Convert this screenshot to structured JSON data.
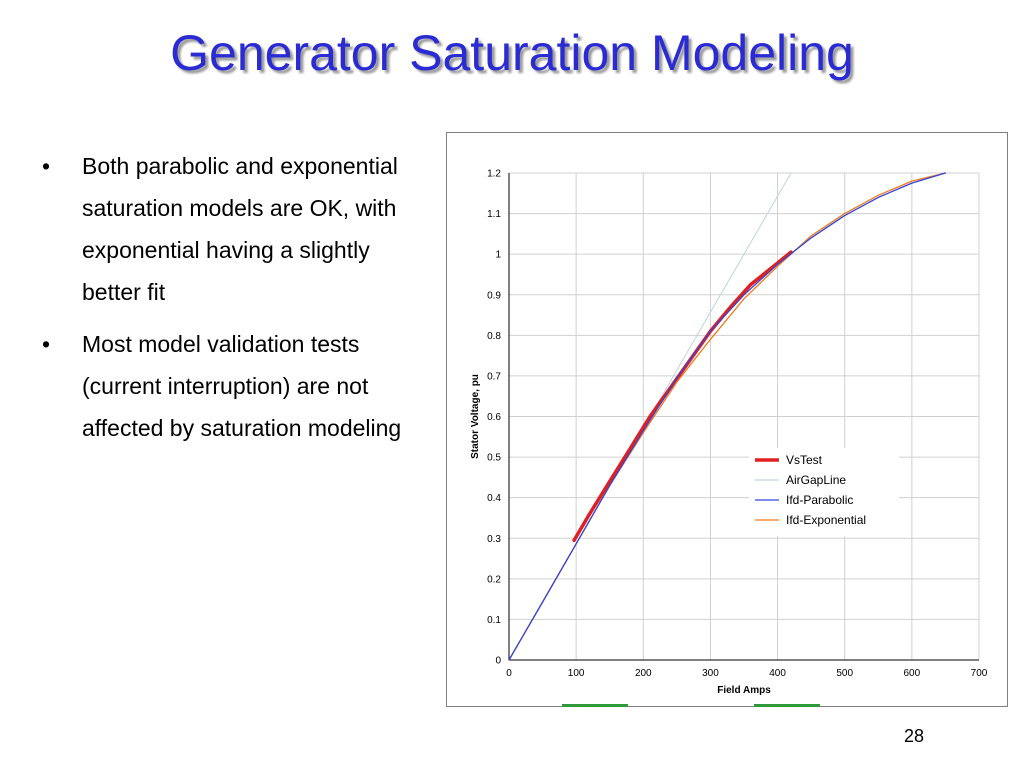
{
  "slide": {
    "title": "Generator Saturation Modeling",
    "bullets": [
      "Both parabolic and exponential saturation models are OK, with exponential having a slightly better fit",
      "Most model validation tests (current interruption) are not affected by saturation modeling"
    ],
    "bullet_glyph": "•",
    "page_number": "28"
  },
  "colors": {
    "title": "#2b2bd4",
    "vs_test": "#e02020",
    "air_gap": "#c0d4dc",
    "parabolic": "#3344dd",
    "exponential": "#f07a1a",
    "grid": "#d0d0d0"
  },
  "chart_data": {
    "type": "line",
    "xlabel": "Field Amps",
    "ylabel": "Stator Voltage, pu",
    "xlim": [
      0,
      700
    ],
    "ylim": [
      0,
      1.2
    ],
    "x_ticks": [
      "0",
      "100",
      "200",
      "300",
      "400",
      "500",
      "600",
      "700"
    ],
    "y_ticks": [
      "0",
      "0.1",
      "0.2",
      "0.3",
      "0.4",
      "0.5",
      "0.6",
      "0.7",
      "0.8",
      "0.9",
      "1",
      "1.1",
      "1.2"
    ],
    "grid": true,
    "legend_position": "lower-right",
    "series": [
      {
        "name": "VsTest",
        "color_key": "vs_test",
        "x": [
          97,
          120,
          150,
          180,
          210,
          240,
          270,
          300,
          330,
          360,
          390,
          420
        ],
        "y": [
          0.295,
          0.36,
          0.44,
          0.52,
          0.6,
          0.67,
          0.74,
          0.81,
          0.87,
          0.925,
          0.965,
          1.005
        ]
      },
      {
        "name": "AirGapLine",
        "color_key": "air_gap",
        "x": [
          0,
          420
        ],
        "y": [
          0,
          1.2
        ]
      },
      {
        "name": "Ifd-Parabolic",
        "color_key": "parabolic",
        "x": [
          0,
          50,
          100,
          150,
          200,
          250,
          300,
          350,
          400,
          450,
          500,
          550,
          600,
          650
        ],
        "y": [
          0,
          0.143,
          0.286,
          0.43,
          0.565,
          0.695,
          0.81,
          0.9,
          0.975,
          1.04,
          1.095,
          1.14,
          1.175,
          1.2
        ]
      },
      {
        "name": "Ifd-Exponential",
        "color_key": "exponential",
        "x": [
          0,
          50,
          100,
          150,
          200,
          250,
          300,
          350,
          400,
          450,
          500,
          550,
          600,
          650
        ],
        "y": [
          0,
          0.143,
          0.286,
          0.43,
          0.56,
          0.685,
          0.79,
          0.89,
          0.97,
          1.045,
          1.1,
          1.145,
          1.18,
          1.2
        ]
      }
    ]
  }
}
